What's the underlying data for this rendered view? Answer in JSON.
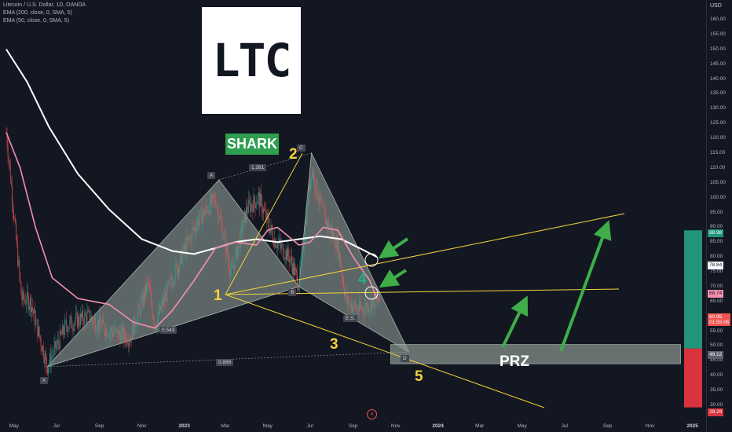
{
  "header": {
    "symbol_line": "Litecoin / U.S. Dollar, 1D, OANDA",
    "ema1": "EMA (200, close, 0, SMA, 5)",
    "ema2": "EMA (50, close, 0, SMA, 5)"
  },
  "logo": {
    "text": "LTC"
  },
  "pattern_label": "SHARK",
  "zone_label": "PRZ",
  "points": {
    "X": "X",
    "A": "A",
    "B": "B",
    "C": "C",
    "D": "D",
    "ES": "E.S."
  },
  "ratios": {
    "ab": "0.543",
    "xc": "1.261",
    "xd": "0.886"
  },
  "wave_numbers": {
    "one": "1",
    "two": "2",
    "three": "3",
    "four": "4",
    "five": "5"
  },
  "price_axis": {
    "currency": "USD",
    "ticks": [
      "160.00",
      "155.00",
      "150.00",
      "145.00",
      "140.00",
      "135.00",
      "130.00",
      "125.00",
      "120.00",
      "115.00",
      "110.00",
      "105.00",
      "100.00",
      "95.00",
      "90.00",
      "85.00",
      "80.00",
      "75.00",
      "70.00",
      "65.00",
      "60.00",
      "55.00",
      "50.00",
      "45.00",
      "40.00",
      "35.00",
      "30.00"
    ],
    "tags": {
      "green_top": "88.98",
      "white1": "78.84",
      "pink": "68.74",
      "red_price": "60.95",
      "countdown": "01:55:06",
      "gray": "49.12",
      "red_bottom": "29.29"
    }
  },
  "time_axis": {
    "ticks": [
      "May",
      "Jul",
      "Sep",
      "Nov",
      "2023",
      "Mar",
      "May",
      "Jul",
      "Sep",
      "Nov",
      "2024",
      "Mar",
      "May",
      "Jul",
      "Sep",
      "Nov",
      "2025"
    ]
  },
  "colors": {
    "background": "#131722",
    "up": "#26a69a",
    "down": "#ef5350",
    "ema200": "#ffffff",
    "ema50": "#f48fb1",
    "pattern_fill": "#9aa79f",
    "lines": "#f5d33b",
    "arrows": "#3fae49",
    "long_profit": "#22957a",
    "long_loss": "#d9343e"
  },
  "chart_data": {
    "type": "candlestick",
    "x_range": [
      "2022-04-20",
      "2025-01-15"
    ],
    "ylim": [
      27,
      163
    ],
    "log_scale": false,
    "grid": false,
    "series": [
      {
        "name": "EMA (200, close, 0, SMA, 5)",
        "x": [
          "2022-04-20",
          "2022-05-20",
          "2022-06-20",
          "2022-08-01",
          "2022-09-15",
          "2022-11-01",
          "2022-12-15",
          "2023-01-15",
          "2023-02-15",
          "2023-03-15",
          "2023-04-15",
          "2023-05-15",
          "2023-06-15",
          "2023-07-15",
          "2023-08-15",
          "2023-09-10",
          "2023-10-05"
        ],
        "values": [
          150,
          139,
          124,
          108,
          96,
          86,
          82,
          81,
          83,
          85,
          86,
          85,
          86,
          87,
          86,
          83,
          80
        ]
      },
      {
        "name": "EMA (50, close, 0, SMA, 5)",
        "x": [
          "2022-04-20",
          "2022-05-10",
          "2022-06-01",
          "2022-06-25",
          "2022-08-01",
          "2022-09-15",
          "2022-10-20",
          "2022-11-20",
          "2022-12-15",
          "2023-01-15",
          "2023-02-15",
          "2023-03-15",
          "2023-04-15",
          "2023-05-01",
          "2023-05-15",
          "2023-06-15",
          "2023-07-01",
          "2023-07-20",
          "2023-08-10",
          "2023-09-01",
          "2023-09-25",
          "2023-10-05"
        ],
        "values": [
          122,
          110,
          90,
          73,
          66,
          64,
          58,
          56,
          62,
          72,
          83,
          85,
          84,
          89,
          90,
          84,
          85,
          90,
          89,
          80,
          72,
          66
        ]
      },
      {
        "name": "Litecoin / U.S. Dollar, 1D, OANDA",
        "x": [
          "2022-04-20",
          "2022-05-12",
          "2022-05-25",
          "2022-06-18",
          "2022-07-15",
          "2022-08-15",
          "2022-09-15",
          "2022-10-15",
          "2022-11-10",
          "2022-11-20",
          "2022-12-15",
          "2023-01-20",
          "2023-02-15",
          "2023-03-10",
          "2023-04-01",
          "2023-04-18",
          "2023-05-10",
          "2023-06-01",
          "2023-06-15",
          "2023-07-03",
          "2023-07-20",
          "2023-08-10",
          "2023-08-22",
          "2023-09-10",
          "2023-10-01",
          "2023-10-10"
        ],
        "values": [
          122,
          66,
          65,
          43,
          57,
          60,
          55,
          53,
          71,
          57,
          73,
          92,
          100,
          74,
          96,
          100,
          86,
          80,
          71,
          110,
          94,
          84,
          65,
          62,
          65,
          65
        ]
      }
    ],
    "harmonic_pattern": {
      "name": "SHARK",
      "points": [
        {
          "label": "X",
          "x": "2022-06-18",
          "y": 43
        },
        {
          "label": "A",
          "x": "2023-02-20",
          "y": 106
        },
        {
          "label": "B",
          "x": "2023-06-15",
          "y": 70
        },
        {
          "label": "C",
          "x": "2023-07-03",
          "y": 115
        },
        {
          "label": "D",
          "x": "2023-11-20",
          "y": 48
        }
      ],
      "ratios": {
        "AB": 0.543,
        "XC": 1.261,
        "XD": 0.886
      }
    },
    "prz_zone": {
      "x": [
        "2023-10-25",
        "2024-12-15"
      ],
      "y": [
        44,
        50.5
      ]
    },
    "long_position": {
      "x": [
        "2024-12-20",
        "2025-01-15"
      ],
      "target": 88.98,
      "entry": 49.12,
      "stop": 29.29
    }
  }
}
